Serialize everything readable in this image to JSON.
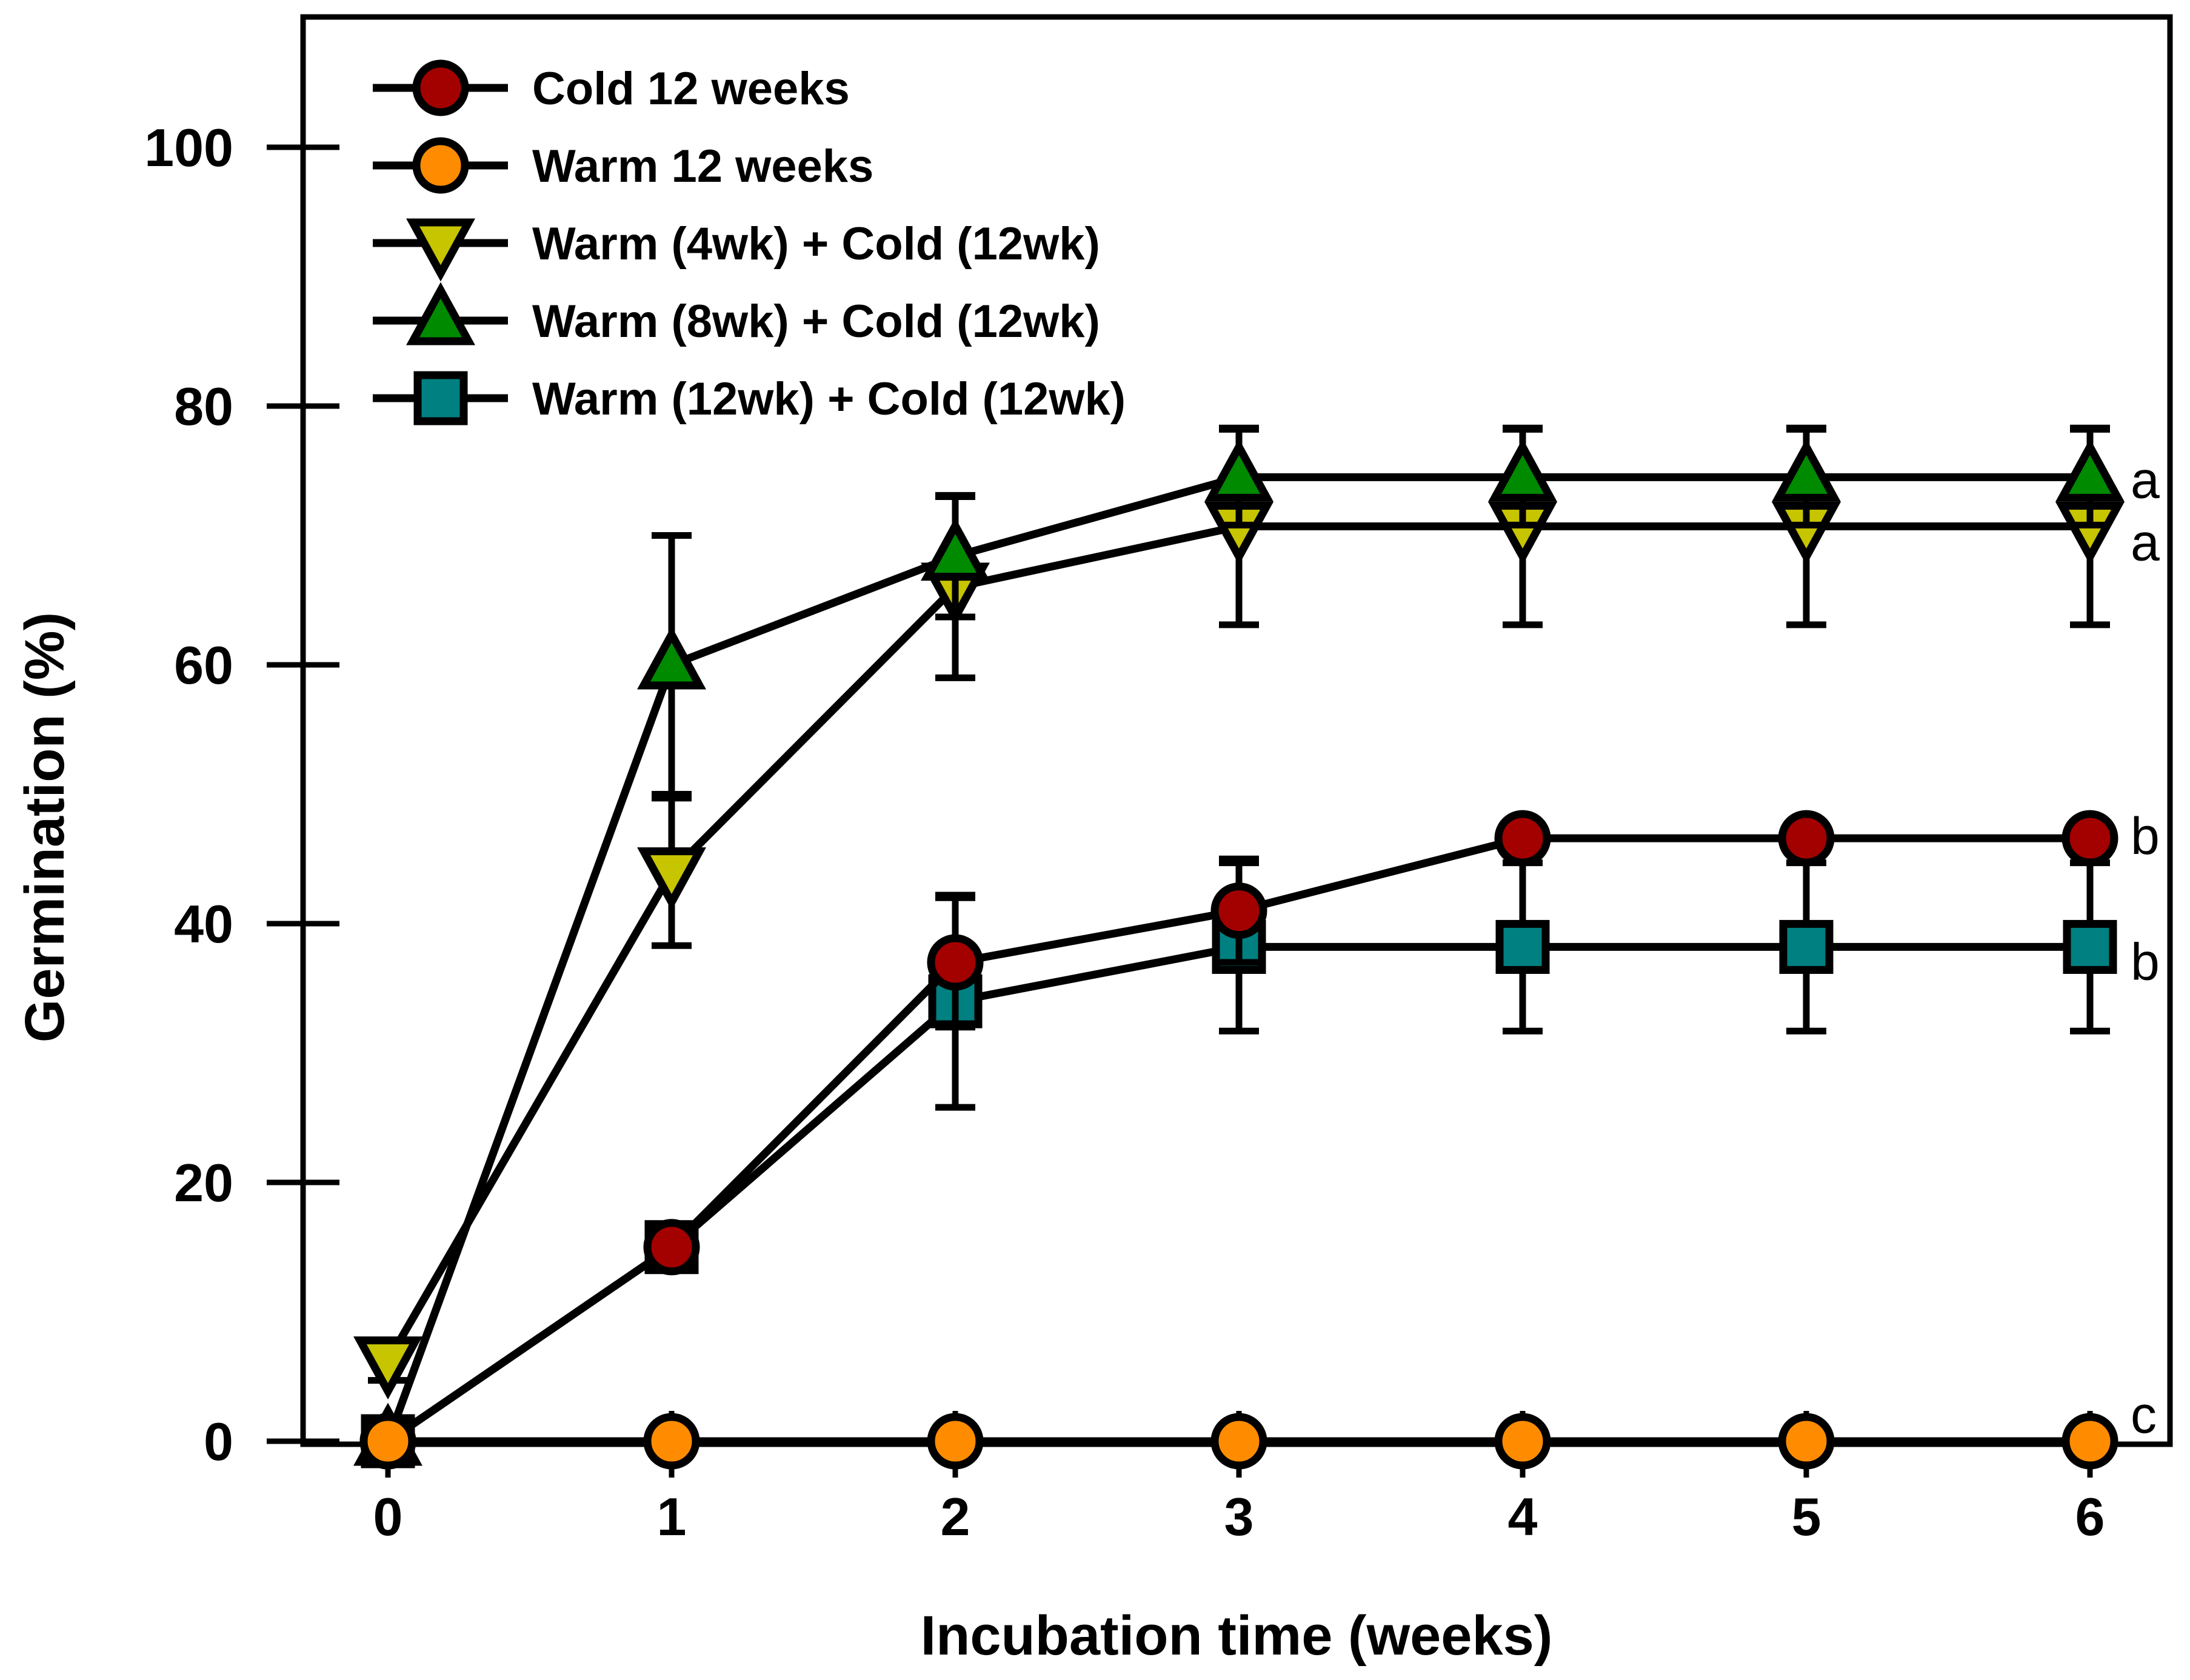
{
  "chart_data": {
    "type": "line",
    "xlabel": "Incubation time (weeks)",
    "ylabel": "Germination (%)",
    "x": [
      0,
      1,
      2,
      3,
      4,
      5,
      6
    ],
    "xlim": [
      -0.3,
      6.3
    ],
    "ylim": [
      0,
      110
    ],
    "xticks": [
      "0",
      "1",
      "2",
      "3",
      "4",
      "5",
      "6"
    ],
    "yticks": [
      "0",
      "20",
      "40",
      "60",
      "80",
      "100"
    ],
    "legend_position": "top-left",
    "series": [
      {
        "name": "Cold 12 weeks",
        "marker": "circle",
        "color": "#a30000",
        "values": [
          0,
          15,
          37,
          41,
          46.6,
          46.6,
          46.6
        ],
        "errors": [
          0,
          0,
          5,
          4,
          0,
          0,
          0
        ],
        "significance": "b"
      },
      {
        "name": "Warm 12 weeks",
        "marker": "circle",
        "color": "#ff8c00",
        "values": [
          0,
          0,
          0,
          0,
          0,
          0,
          0
        ],
        "errors": [
          0,
          0,
          0,
          0,
          0,
          0,
          0
        ],
        "significance": "c"
      },
      {
        "name": "Warm (4wk) + Cold (12wk)",
        "marker": "triangle-down",
        "color": "#c7c400",
        "values": [
          6.2,
          44,
          66,
          70.7,
          70.7,
          70.7,
          70.7
        ],
        "errors": [
          1.5,
          5.7,
          7,
          7.6,
          7.6,
          7.6,
          7.6
        ],
        "significance": "a"
      },
      {
        "name": "Warm (8wk) + Cold (12wk)",
        "marker": "triangle-up",
        "color": "#008a00",
        "values": [
          0,
          60,
          68.4,
          74.5,
          74.5,
          74.5,
          74.5
        ],
        "errors": [
          0,
          10,
          4.7,
          3.7,
          3.7,
          3.7,
          3.7
        ],
        "significance": "a"
      },
      {
        "name": "Warm (12wk) + Cold (12wk)",
        "marker": "square",
        "color": "#008080",
        "values": [
          0,
          15,
          34,
          38.2,
          38.2,
          38.2,
          38.2
        ],
        "errors": [
          0,
          0,
          8.2,
          6.5,
          6.5,
          6.5,
          6.5
        ],
        "significance": "b"
      }
    ]
  }
}
